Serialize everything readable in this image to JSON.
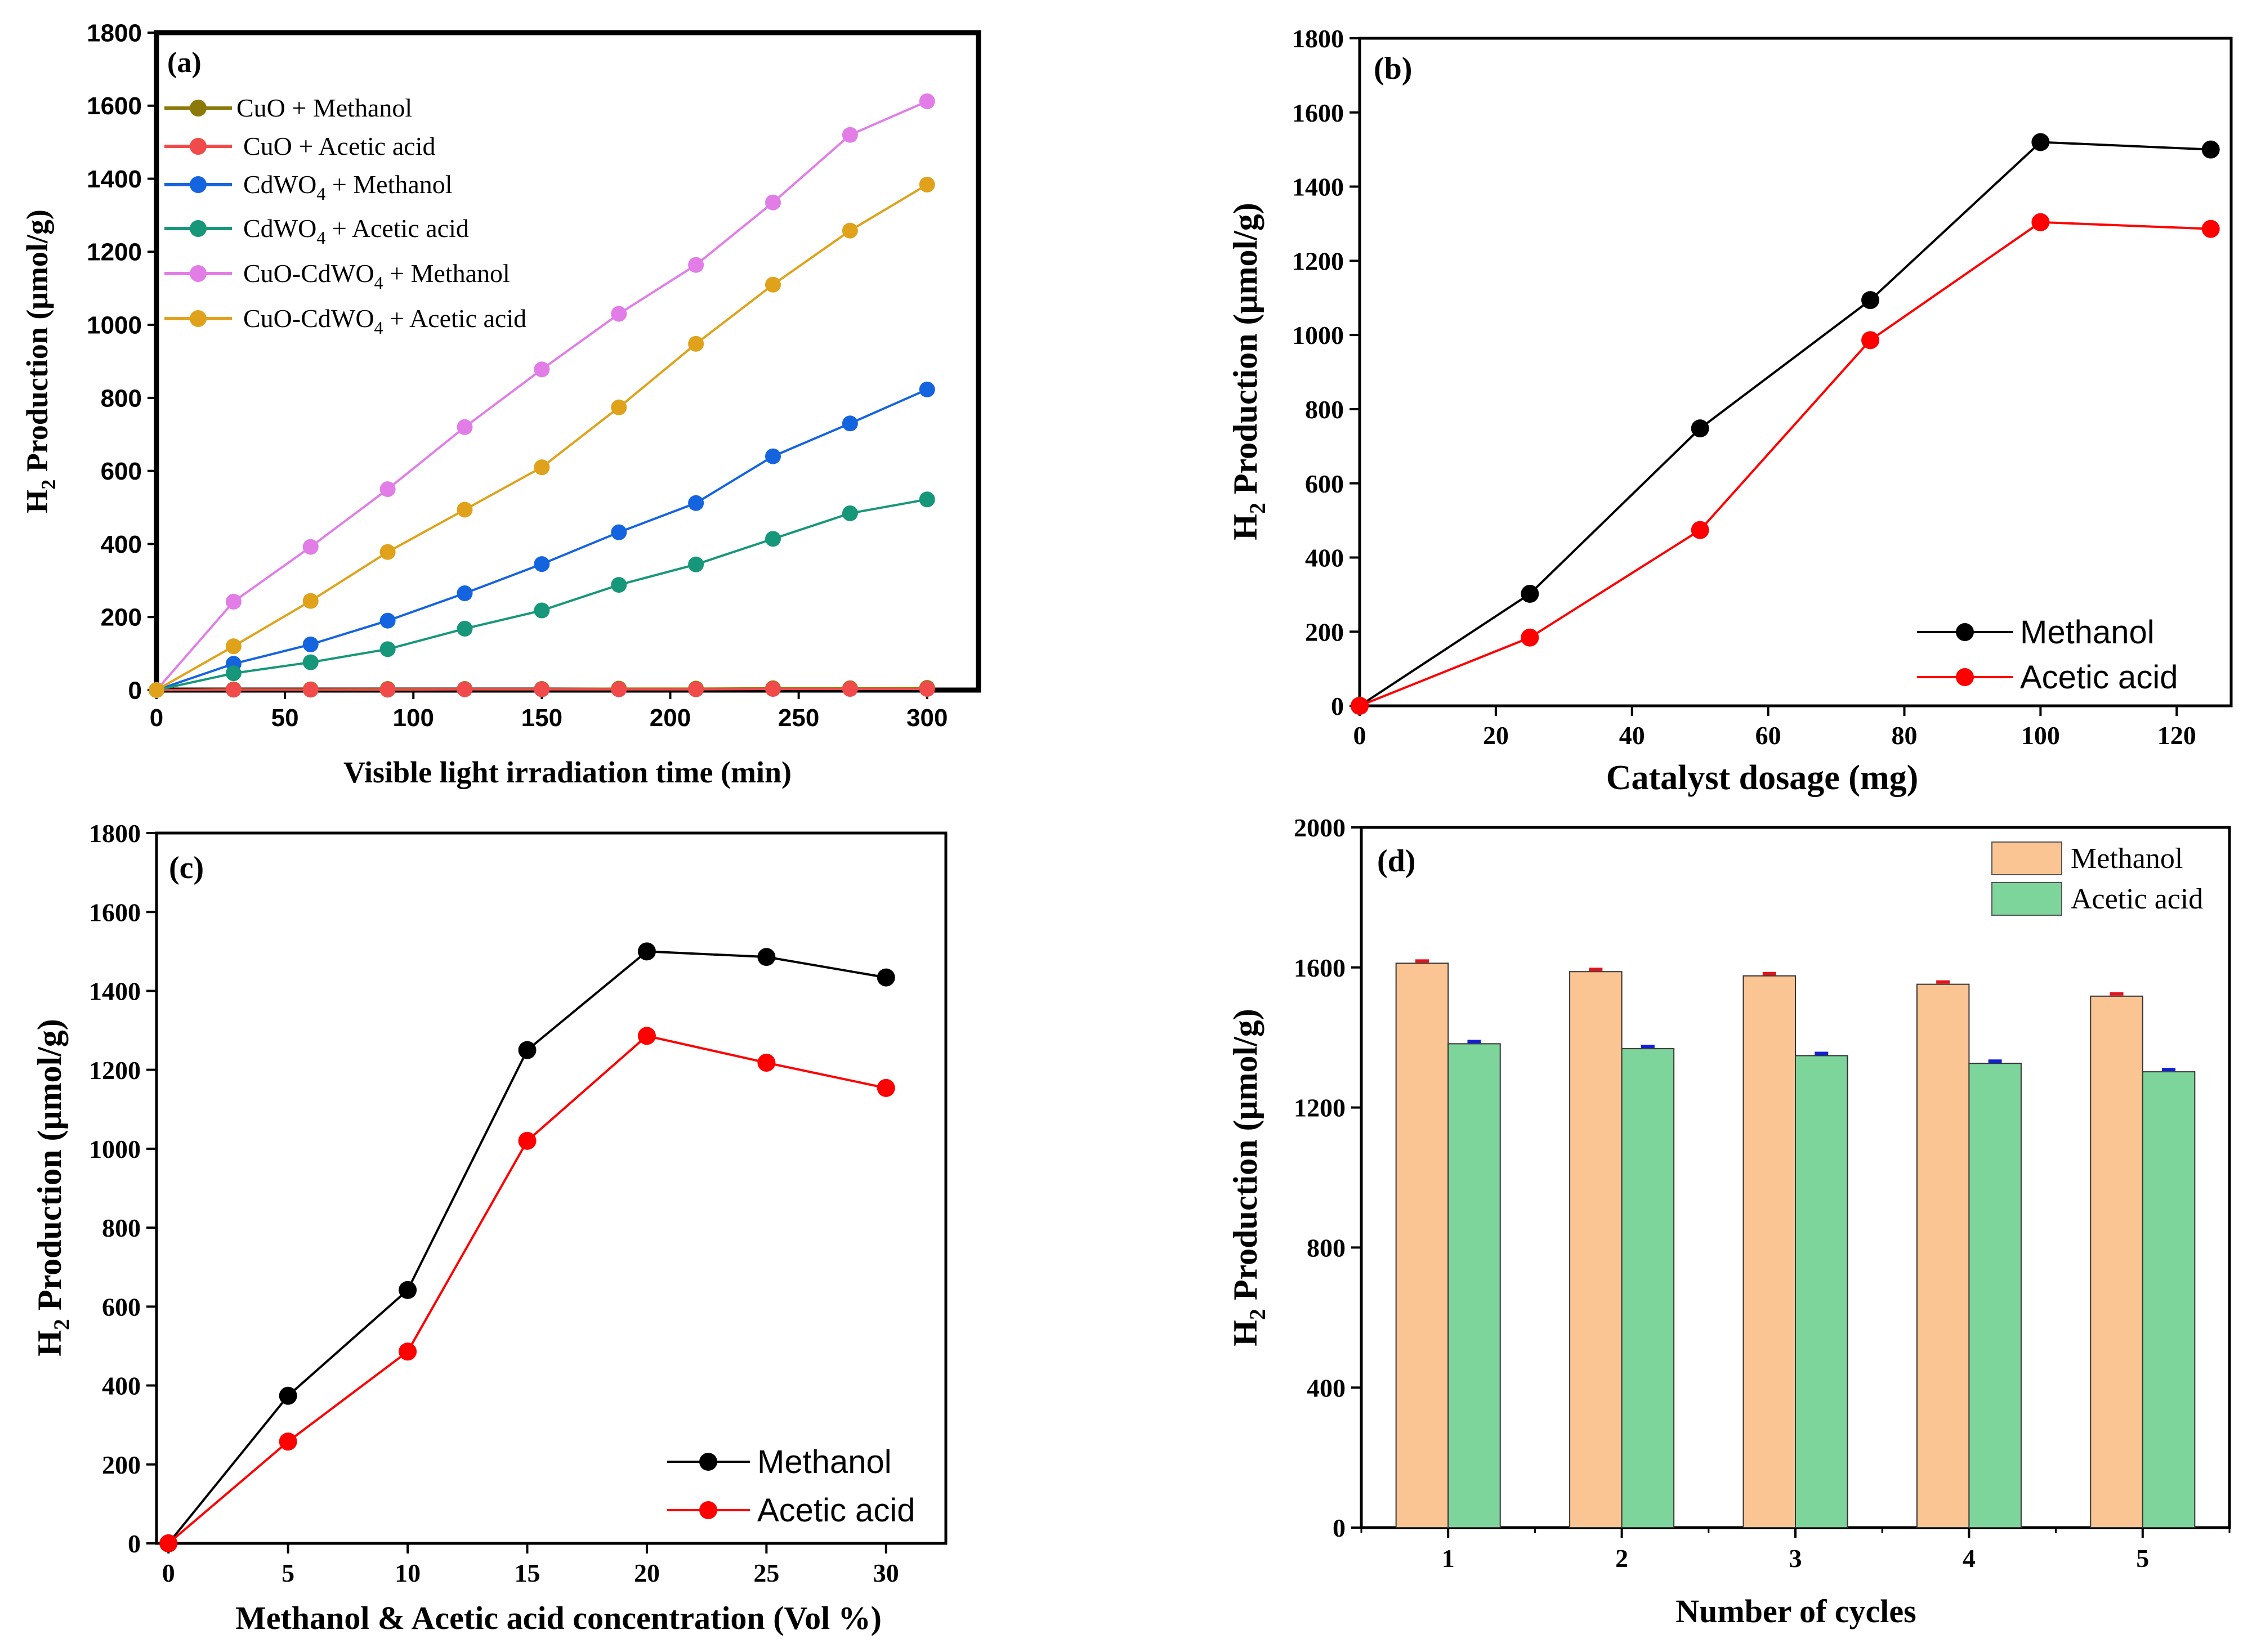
{
  "chart_data": [
    {
      "type": "line",
      "panel_label": "(a)",
      "xlabel": "Visible light irradiation time (min)",
      "ylabel_main": "H",
      "ylabel_sub": "2",
      "ylabel_rest": " Production (μmol/g)",
      "xlim": [
        0,
        320
      ],
      "ylim": [
        0,
        1800
      ],
      "xticks": [
        0,
        50,
        100,
        150,
        200,
        250,
        300
      ],
      "yticks": [
        0,
        200,
        400,
        600,
        800,
        1000,
        1200,
        1400,
        1600,
        1800
      ],
      "x": [
        0,
        30,
        60,
        90,
        120,
        150,
        180,
        210,
        240,
        270,
        300
      ],
      "series": [
        {
          "name": "CuO + Methanol",
          "legend_main": "CuO + Methanol",
          "legend_sub": "",
          "legend_rest": "",
          "color": "#8b7a0a",
          "values": [
            0,
            2,
            2,
            3,
            3,
            3,
            4,
            4,
            5,
            5,
            6
          ]
        },
        {
          "name": "CuO + Acetic acid",
          "legend_main": "CuO + Acetic acid",
          "legend_sub": "",
          "legend_rest": "",
          "color": "#f04a4a",
          "values": [
            0,
            1,
            1,
            1,
            2,
            2,
            2,
            2,
            3,
            3,
            3
          ]
        },
        {
          "name": "CdWO4 + Methanol",
          "legend_main": "CdWO",
          "legend_sub": "4",
          "legend_rest": " + Methanol",
          "color": "#1464e0",
          "values": [
            0,
            72,
            125,
            190,
            265,
            345,
            432,
            512,
            640,
            730,
            823
          ]
        },
        {
          "name": "CdWO4 + Acetic acid",
          "legend_main": "CdWO",
          "legend_sub": "4",
          "legend_rest": " + Acetic acid",
          "color": "#16977a",
          "values": [
            0,
            46,
            76,
            112,
            168,
            218,
            288,
            344,
            414,
            484,
            522
          ]
        },
        {
          "name": "CuO-CdWO4 + Methanol",
          "legend_main": "CuO-CdWO",
          "legend_sub": "4",
          "legend_rest": " + Methanol",
          "color": "#e27de8",
          "values": [
            0,
            242,
            392,
            550,
            720,
            878,
            1030,
            1164,
            1335,
            1520,
            1612
          ]
        },
        {
          "name": "CuO-CdWO4 + Acetic acid",
          "legend_main": "CuO-CdWO",
          "legend_sub": "4",
          "legend_rest": " + Acetic acid",
          "color": "#e0a21a",
          "values": [
            0,
            120,
            244,
            378,
            494,
            610,
            774,
            948,
            1110,
            1258,
            1384
          ]
        }
      ]
    },
    {
      "type": "line",
      "panel_label": "(b)",
      "xlabel": "Catalyst dosage (mg)",
      "ylabel_main": "H",
      "ylabel_sub": "2",
      "ylabel_rest": " Production (μmol/g)",
      "xlim": [
        0,
        128
      ],
      "ylim": [
        0,
        1800
      ],
      "xticks": [
        0,
        20,
        40,
        60,
        80,
        100,
        120
      ],
      "yticks": [
        0,
        200,
        400,
        600,
        800,
        1000,
        1200,
        1400,
        1600,
        1800
      ],
      "x": [
        0,
        25,
        50,
        75,
        100,
        125
      ],
      "series": [
        {
          "name": "Methanol",
          "color": "#000000",
          "values": [
            0,
            302,
            748,
            1094,
            1520,
            1500
          ]
        },
        {
          "name": "Acetic acid",
          "color": "#ff0000",
          "values": [
            0,
            184,
            474,
            986,
            1304,
            1286
          ]
        }
      ]
    },
    {
      "type": "line",
      "panel_label": "(c)",
      "xlabel": "Methanol & Acetic acid concentration (Vol %)",
      "ylabel_main": "H",
      "ylabel_sub": "2",
      "ylabel_rest": " Production (μmol/g)",
      "xlim": [
        -0.5,
        32.5
      ],
      "ylim": [
        0,
        1800
      ],
      "xticks": [
        0,
        5,
        10,
        15,
        20,
        25,
        30
      ],
      "yticks": [
        0,
        200,
        400,
        600,
        800,
        1000,
        1200,
        1400,
        1600,
        1800
      ],
      "x": [
        0,
        5,
        10,
        15,
        20,
        25,
        30
      ],
      "series": [
        {
          "name": "Methanol",
          "color": "#000000",
          "values": [
            0,
            374,
            642,
            1250,
            1500,
            1486,
            1434
          ]
        },
        {
          "name": "Acetic acid",
          "color": "#ff0000",
          "values": [
            0,
            258,
            486,
            1020,
            1286,
            1218,
            1154
          ]
        }
      ]
    },
    {
      "type": "bar",
      "panel_label": "(d)",
      "xlabel": "Number of cycles",
      "ylabel_main": "H",
      "ylabel_sub": "2",
      "ylabel_rest": " Production (μmol/g)",
      "ylim": [
        0,
        2000
      ],
      "yticks": [
        0,
        400,
        800,
        1200,
        1600,
        2000
      ],
      "categories": [
        "1",
        "2",
        "3",
        "4",
        "5"
      ],
      "series": [
        {
          "name": "Methanol",
          "color": "#fbc593",
          "error_color": "#e0141c",
          "values": [
            1612,
            1588,
            1576,
            1552,
            1518
          ]
        },
        {
          "name": "Acetic acid",
          "color": "#7ed59b",
          "error_color": "#1020d8",
          "values": [
            1382,
            1368,
            1348,
            1326,
            1302
          ]
        }
      ]
    }
  ]
}
